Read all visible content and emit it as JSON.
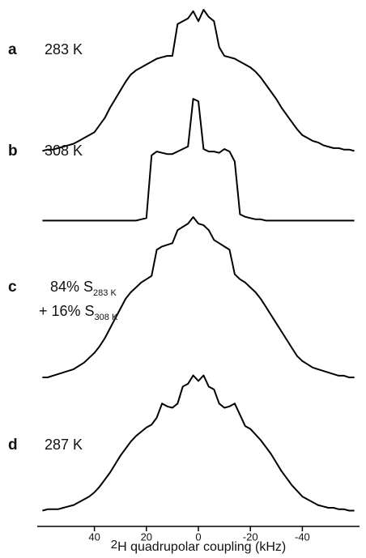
{
  "chart_data": {
    "type": "line",
    "color": "#000000",
    "xlim": [
      62,
      -62
    ],
    "xticks": [
      40,
      20,
      0,
      -20,
      -40
    ],
    "ylim": [
      0,
      100
    ],
    "xlabel_superscript": "2",
    "xlabel": "H quadrupolar coupling (kHz)",
    "x": [
      60,
      58,
      56,
      54,
      52,
      50,
      48,
      46,
      44,
      42,
      40,
      38,
      36,
      34,
      32,
      30,
      28,
      26,
      24,
      22,
      20,
      18,
      16,
      14,
      12,
      10,
      8,
      6,
      4,
      2,
      0,
      -2,
      -4,
      -6,
      -8,
      -10,
      -12,
      -14,
      -16,
      -18,
      -20,
      -22,
      -24,
      -26,
      -28,
      -30,
      -32,
      -34,
      -36,
      -38,
      -40,
      -42,
      -44,
      -46,
      -48,
      -50,
      -52,
      -54,
      -56,
      -58,
      -60
    ],
    "series": [
      {
        "name": "a",
        "label_lines": [
          [
            "283 K"
          ]
        ],
        "values": [
          2,
          3,
          3,
          4,
          5,
          6,
          7,
          9,
          11,
          13,
          15,
          20,
          25,
          32,
          38,
          44,
          50,
          55,
          58,
          60,
          62,
          64,
          66,
          67,
          68,
          68,
          90,
          92,
          94,
          99,
          92,
          100,
          95,
          92,
          74,
          68,
          67,
          66,
          64,
          62,
          60,
          57,
          53,
          48,
          43,
          38,
          32,
          27,
          22,
          17,
          13,
          11,
          9,
          8,
          6,
          5,
          4,
          4,
          3,
          3,
          2
        ]
      },
      {
        "name": "b",
        "label_lines": [
          [
            "308 K"
          ]
        ],
        "values": [
          3,
          3,
          3,
          3,
          3,
          3,
          3,
          3,
          3,
          3,
          3,
          3,
          3,
          3,
          3,
          3,
          3,
          3,
          3,
          4,
          5,
          55,
          58,
          57,
          56,
          56,
          58,
          60,
          62,
          100,
          98,
          60,
          58,
          58,
          57,
          60,
          58,
          50,
          8,
          6,
          5,
          4,
          4,
          3,
          3,
          3,
          3,
          3,
          3,
          3,
          3,
          3,
          3,
          3,
          3,
          3,
          3,
          3,
          3,
          3,
          3
        ]
      },
      {
        "name": "c",
        "label_lines": [
          [
            "84% S",
            "283 K"
          ],
          [
            "+ 16% S",
            "308 K"
          ]
        ],
        "values": [
          2,
          2,
          3,
          4,
          5,
          6,
          7,
          9,
          11,
          14,
          17,
          21,
          26,
          32,
          38,
          44,
          50,
          54,
          57,
          60,
          62,
          64,
          80,
          82,
          83,
          84,
          92,
          94,
          96,
          100,
          96,
          95,
          92,
          86,
          84,
          82,
          80,
          65,
          62,
          60,
          57,
          54,
          50,
          45,
          40,
          35,
          30,
          25,
          20,
          15,
          12,
          10,
          8,
          7,
          6,
          5,
          4,
          3,
          3,
          2,
          2
        ]
      },
      {
        "name": "d",
        "label_lines": [
          [
            "287 K"
          ]
        ],
        "values": [
          2,
          3,
          3,
          3,
          4,
          5,
          6,
          8,
          10,
          12,
          15,
          19,
          24,
          29,
          35,
          41,
          46,
          51,
          55,
          58,
          61,
          63,
          68,
          78,
          76,
          75,
          78,
          90,
          92,
          98,
          94,
          98,
          90,
          88,
          78,
          75,
          76,
          78,
          70,
          62,
          60,
          56,
          52,
          47,
          42,
          36,
          30,
          25,
          20,
          16,
          12,
          10,
          8,
          6,
          5,
          4,
          4,
          3,
          3,
          2,
          2
        ]
      }
    ]
  }
}
